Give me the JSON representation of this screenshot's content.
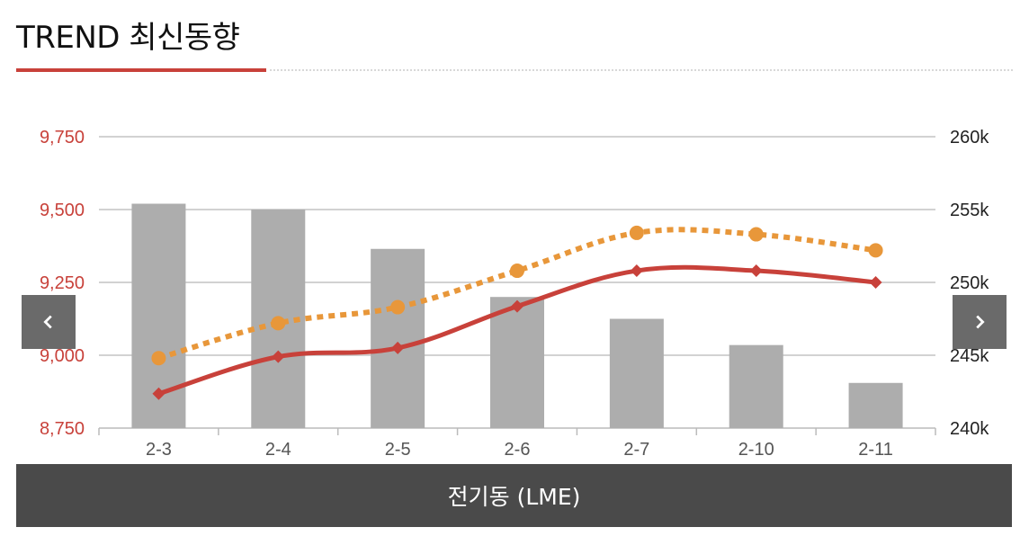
{
  "header": {
    "title": "TREND 최신동향"
  },
  "footer": {
    "label": "전기동 (LME)"
  },
  "colors": {
    "accent": "#c8413a",
    "series_dotted": "#e8973a",
    "bars": "#adadad",
    "footer_bg": "#4a4a4a"
  },
  "nav": {
    "prev_icon": "chevron-left-icon",
    "next_icon": "chevron-right-icon"
  },
  "chart_data": {
    "type": "bar",
    "categories": [
      "2-3",
      "2-4",
      "2-5",
      "2-6",
      "2-7",
      "2-10",
      "2-11"
    ],
    "left_axis": {
      "ticks": [
        "9,750",
        "9,500",
        "9,250",
        "9,000",
        "8,750"
      ],
      "ylim": [
        8750,
        9750
      ]
    },
    "right_axis": {
      "ticks": [
        "260k",
        "255k",
        "250k",
        "245k",
        "240k"
      ],
      "ylim": [
        240000,
        260000
      ]
    },
    "series": [
      {
        "type": "bar",
        "axis": "right",
        "values": [
          255400,
          255000,
          252300,
          249000,
          247500,
          245700,
          243100
        ]
      },
      {
        "type": "line",
        "style": "dotted",
        "marker": "circle",
        "axis": "left",
        "values": [
          8990,
          9110,
          9165,
          9290,
          9420,
          9415,
          9360
        ]
      },
      {
        "type": "line",
        "style": "solid",
        "marker": "diamond",
        "axis": "left",
        "values": [
          8868,
          8995,
          9025,
          9168,
          9290,
          9290,
          9250
        ]
      }
    ],
    "grid": true,
    "legend": "none"
  }
}
